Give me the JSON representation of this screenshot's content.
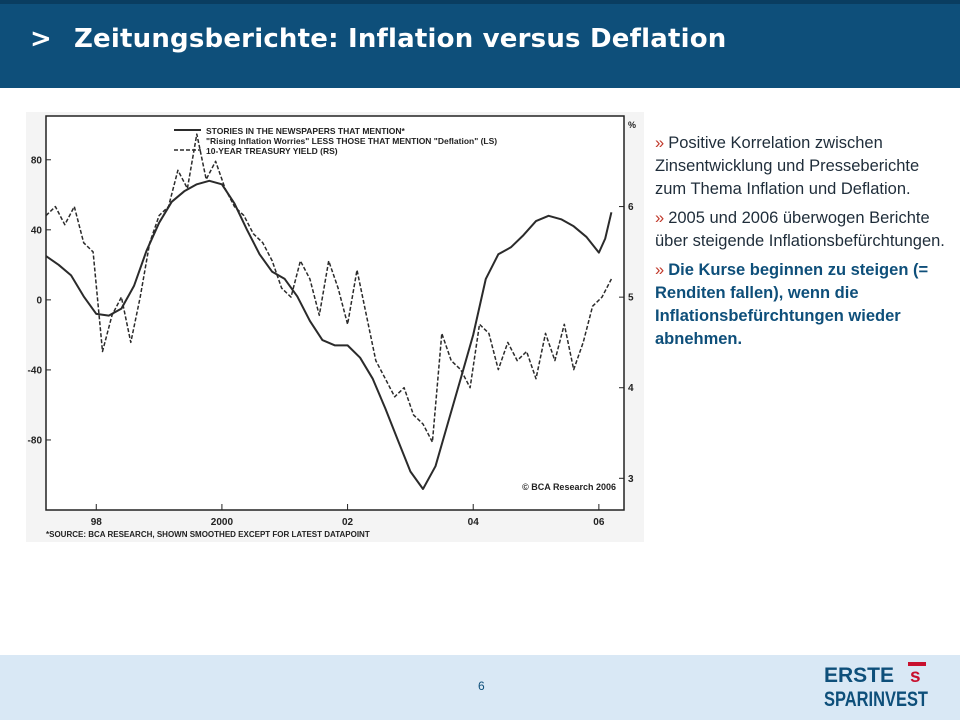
{
  "header": {
    "caret": ">",
    "title": "Zeitungsberichte: Inflation versus Deflation"
  },
  "bullets": [
    {
      "mark": "»",
      "text": "Positive Korrelation zwischen Zinsentwicklung und Presseberichte zum Thema Inflation und Deflation."
    },
    {
      "mark": "»",
      "text": "2005 und 2006 überwogen Berichte über steigende Inflationsbefürchtungen."
    },
    {
      "mark": "»",
      "text": "Die Kurse beginnen zu steigen (= Renditen fallen), wenn die Inflationsbefürchtungen wieder abnehmen."
    }
  ],
  "footer": {
    "page_number": "6"
  },
  "logo": {
    "line1": "ERSTE",
    "line2": "SPARINVEST",
    "symbol": "s",
    "color": "#c8102e"
  },
  "colors": {
    "header": "#0e4f7a",
    "footer": "#d9e8f5"
  },
  "chart_data": {
    "type": "line",
    "legend": {
      "title": "STORIES IN THE NEWSPAPERS THAT MENTION*",
      "entries": [
        "\"Rising Inflation Worries\" LESS THOSE THAT MENTION \"Deflation\" (LS)",
        "10-YEAR TREASURY YIELD (RS)"
      ],
      "placement": "top-center"
    },
    "unit_label_right": "%",
    "x_tick_labels": [
      "98",
      "2000",
      "02",
      "04",
      "06"
    ],
    "x_tick_values": [
      1998,
      2000,
      2002,
      2004,
      2006
    ],
    "xlim": [
      1997.2,
      2006.4
    ],
    "y_left_ticks": [
      "80",
      "40",
      "0",
      "-40",
      "-80"
    ],
    "y_left_values": [
      80,
      40,
      0,
      -40,
      -80
    ],
    "ylim_left": [
      -120,
      105
    ],
    "y_right_ticks": [
      "6",
      "5",
      "4",
      "3"
    ],
    "y_right_values": [
      6,
      5,
      4,
      3
    ],
    "ylim_right": [
      2.65,
      7.0
    ],
    "copyright": "© BCA Research 2006",
    "source_note": "*SOURCE: BCA RESEARCH, SHOWN SMOOTHED EXCEPT FOR LATEST DATAPOINT",
    "series": [
      {
        "name": "\"Rising Inflation Worries\" LESS THOSE THAT MENTION \"Deflation\" (LS)",
        "axis": "left",
        "style": "solid",
        "x": [
          1997.2,
          1997.4,
          1997.6,
          1997.8,
          1998.0,
          1998.2,
          1998.4,
          1998.6,
          1998.8,
          1999.0,
          1999.2,
          1999.4,
          1999.6,
          1999.8,
          2000.0,
          2000.2,
          2000.4,
          2000.6,
          2000.8,
          2001.0,
          2001.2,
          2001.4,
          2001.6,
          2001.8,
          2002.0,
          2002.2,
          2002.4,
          2002.6,
          2002.8,
          2003.0,
          2003.2,
          2003.4,
          2003.6,
          2003.8,
          2004.0,
          2004.2,
          2004.4,
          2004.6,
          2004.8,
          2005.0,
          2005.2,
          2005.4,
          2005.6,
          2005.8,
          2006.0,
          2006.1,
          2006.2
        ],
        "y": [
          25,
          20,
          14,
          2,
          -8,
          -9,
          -5,
          8,
          28,
          44,
          56,
          62,
          66,
          68,
          66,
          55,
          40,
          26,
          16,
          12,
          2,
          -12,
          -23,
          -26,
          -26,
          -33,
          -45,
          -62,
          -80,
          -98,
          -108,
          -95,
          -70,
          -45,
          -20,
          12,
          26,
          30,
          37,
          45,
          48,
          46,
          42,
          36,
          27,
          35,
          50
        ]
      },
      {
        "name": "10-YEAR TREASURY YIELD (RS)",
        "axis": "right",
        "style": "dashed",
        "x": [
          1997.2,
          1997.35,
          1997.5,
          1997.65,
          1997.8,
          1997.95,
          1998.1,
          1998.25,
          1998.4,
          1998.55,
          1998.7,
          1998.85,
          1999.0,
          1999.15,
          1999.3,
          1999.45,
          1999.6,
          1999.75,
          1999.9,
          2000.05,
          2000.2,
          2000.35,
          2000.5,
          2000.65,
          2000.8,
          2000.95,
          2001.1,
          2001.25,
          2001.4,
          2001.55,
          2001.7,
          2001.85,
          2002.0,
          2002.15,
          2002.3,
          2002.45,
          2002.6,
          2002.75,
          2002.9,
          2003.05,
          2003.2,
          2003.35,
          2003.5,
          2003.65,
          2003.8,
          2003.95,
          2004.1,
          2004.25,
          2004.4,
          2004.55,
          2004.7,
          2004.85,
          2005.0,
          2005.15,
          2005.3,
          2005.45,
          2005.6,
          2005.75,
          2005.9,
          2006.05,
          2006.2
        ],
        "y": [
          5.9,
          6.0,
          5.8,
          6.0,
          5.6,
          5.5,
          4.4,
          4.8,
          5.0,
          4.5,
          5.0,
          5.6,
          5.9,
          6.0,
          6.4,
          6.2,
          6.8,
          6.3,
          6.5,
          6.2,
          6.0,
          5.9,
          5.7,
          5.6,
          5.4,
          5.1,
          5.0,
          5.4,
          5.2,
          4.8,
          5.4,
          5.1,
          4.7,
          5.3,
          4.8,
          4.3,
          4.1,
          3.9,
          4.0,
          3.7,
          3.6,
          3.4,
          4.6,
          4.3,
          4.2,
          4.0,
          4.7,
          4.6,
          4.2,
          4.5,
          4.3,
          4.4,
          4.1,
          4.6,
          4.3,
          4.7,
          4.2,
          4.5,
          4.9,
          5.0,
          5.2
        ]
      }
    ]
  }
}
